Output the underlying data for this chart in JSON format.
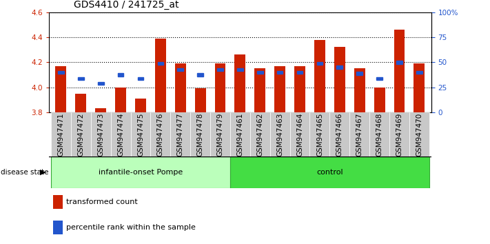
{
  "title": "GDS4410 / 241725_at",
  "samples": [
    "GSM947471",
    "GSM947472",
    "GSM947473",
    "GSM947474",
    "GSM947475",
    "GSM947476",
    "GSM947477",
    "GSM947478",
    "GSM947479",
    "GSM947461",
    "GSM947462",
    "GSM947463",
    "GSM947464",
    "GSM947465",
    "GSM947466",
    "GSM947467",
    "GSM947468",
    "GSM947469",
    "GSM947470"
  ],
  "bar_values": [
    4.17,
    3.95,
    3.83,
    4.0,
    3.91,
    4.39,
    4.19,
    3.99,
    4.19,
    4.26,
    4.15,
    4.17,
    4.17,
    4.38,
    4.32,
    4.15,
    4.0,
    4.46,
    4.19
  ],
  "percentile_values": [
    4.12,
    4.07,
    4.03,
    4.1,
    4.07,
    4.19,
    4.14,
    4.1,
    4.14,
    4.14,
    4.12,
    4.12,
    4.12,
    4.19,
    4.16,
    4.11,
    4.07,
    4.2,
    4.12
  ],
  "ymin": 3.8,
  "ymax": 4.6,
  "yticks": [
    3.8,
    4.0,
    4.2,
    4.4,
    4.6
  ],
  "right_yticks": [
    0,
    25,
    50,
    75,
    100
  ],
  "bar_color": "#CC2200",
  "blue_color": "#2255CC",
  "group1_label": "infantile-onset Pompe",
  "group2_label": "control",
  "group1_color": "#BBFFBB",
  "group2_color": "#44DD44",
  "group1_count": 9,
  "group2_count": 10,
  "disease_state_label": "disease state",
  "legend1": "transformed count",
  "legend2": "percentile rank within the sample",
  "bar_width": 0.55,
  "xtick_bg_color": "#C8C8C8",
  "title_fontsize": 10,
  "tick_fontsize": 7.5
}
